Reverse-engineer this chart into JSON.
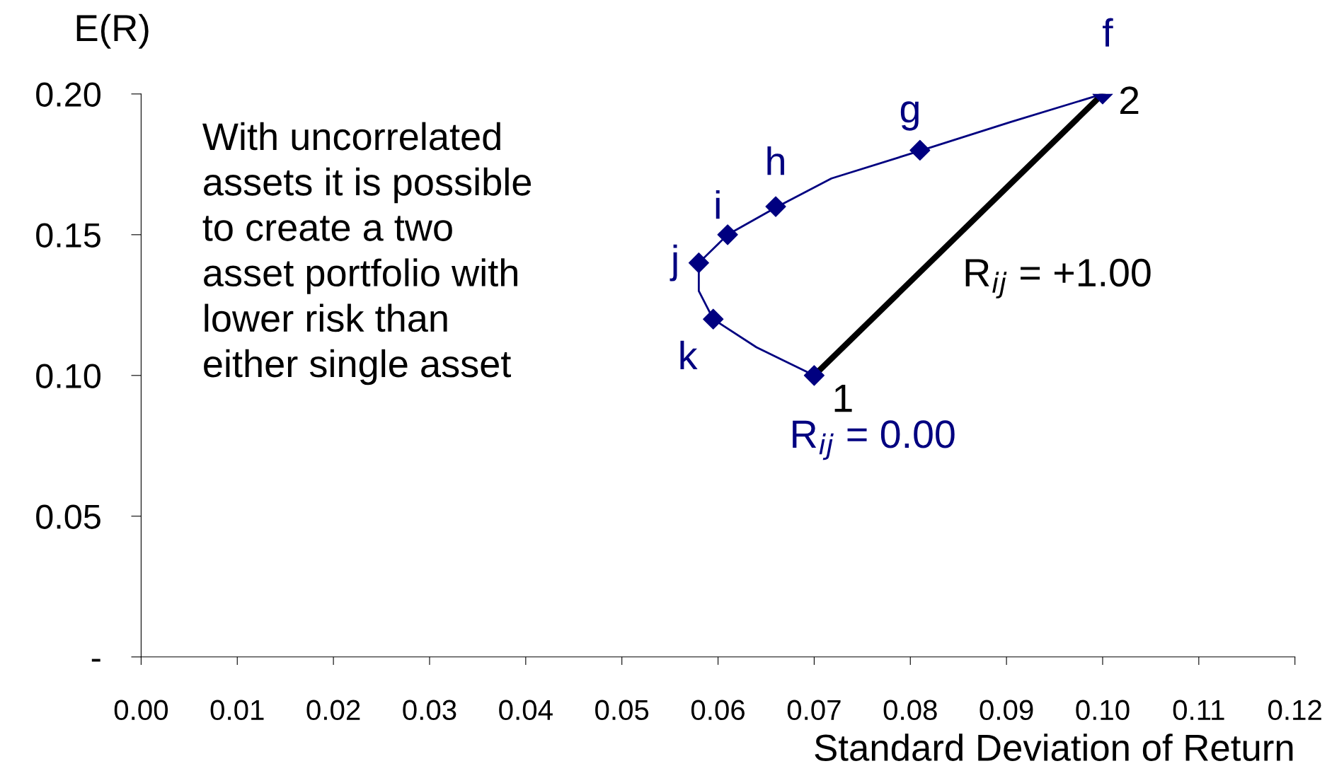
{
  "chart_data": {
    "type": "line",
    "xlabel": "Standard Deviation of Return",
    "ylabel": "E(R)",
    "xlim": [
      0,
      0.12
    ],
    "ylim": [
      0,
      0.2
    ],
    "xticks": [
      {
        "value": 0,
        "label": "0.00"
      },
      {
        "value": 0.01,
        "label": "0.01"
      },
      {
        "value": 0.02,
        "label": "0.02"
      },
      {
        "value": 0.03,
        "label": "0.03"
      },
      {
        "value": 0.04,
        "label": "0.04"
      },
      {
        "value": 0.05,
        "label": "0.05"
      },
      {
        "value": 0.06,
        "label": "0.06"
      },
      {
        "value": 0.07,
        "label": "0.07"
      },
      {
        "value": 0.08,
        "label": "0.08"
      },
      {
        "value": 0.09,
        "label": "0.09"
      },
      {
        "value": 0.1,
        "label": "0.10"
      },
      {
        "value": 0.11,
        "label": "0.11"
      },
      {
        "value": 0.12,
        "label": "0.12"
      }
    ],
    "yticks": [
      {
        "value": 0,
        "label": "-"
      },
      {
        "value": 0.05,
        "label": "0.05"
      },
      {
        "value": 0.1,
        "label": "0.10"
      },
      {
        "value": 0.15,
        "label": "0.15"
      },
      {
        "value": 0.2,
        "label": "0.20"
      }
    ],
    "grid": false,
    "legend": false,
    "series": [
      {
        "type": "line",
        "color": "#000080",
        "marker": "none",
        "x": [
          0.07,
          0.064,
          0.0595,
          0.058,
          0.058,
          0.061,
          0.0662,
          0.0718,
          0.0812,
          0.0904,
          0.1
        ],
        "values": [
          0.1,
          0.11,
          0.12,
          0.13,
          0.14,
          0.15,
          0.16,
          0.17,
          0.18,
          0.19,
          0.2
        ]
      },
      {
        "type": "scatter",
        "color": "#000080",
        "marker": "diamond",
        "x": [
          0.1,
          0.081,
          0.066,
          0.061,
          0.058,
          0.0595,
          0.07
        ],
        "values": [
          0.2,
          0.18,
          0.16,
          0.15,
          0.14,
          0.12,
          0.1
        ]
      },
      {
        "type": "line",
        "color": "#000000",
        "marker": "none",
        "x": [
          0.07,
          0.1
        ],
        "values": [
          0.1,
          0.2
        ]
      }
    ],
    "annotations": [
      {
        "text": "f",
        "x": 0.1,
        "y": 0.2
      },
      {
        "text": "g",
        "x": 0.081,
        "y": 0.18
      },
      {
        "text": "h",
        "x": 0.066,
        "y": 0.16
      },
      {
        "text": "i",
        "x": 0.061,
        "y": 0.15
      },
      {
        "text": "j",
        "x": 0.058,
        "y": 0.14
      },
      {
        "text": "k",
        "x": 0.0595,
        "y": 0.12
      },
      {
        "text": "1",
        "x": 0.07,
        "y": 0.1
      },
      {
        "text": "2",
        "x": 0.1,
        "y": 0.2
      },
      "R$_{ij}$ = +1.00",
      "R$_{ij}$ = 0.00",
      "With uncorrelated\nassets it is possible\nto create a two\nasset portfolio with\nlower risk than\neither single asset"
    ]
  }
}
